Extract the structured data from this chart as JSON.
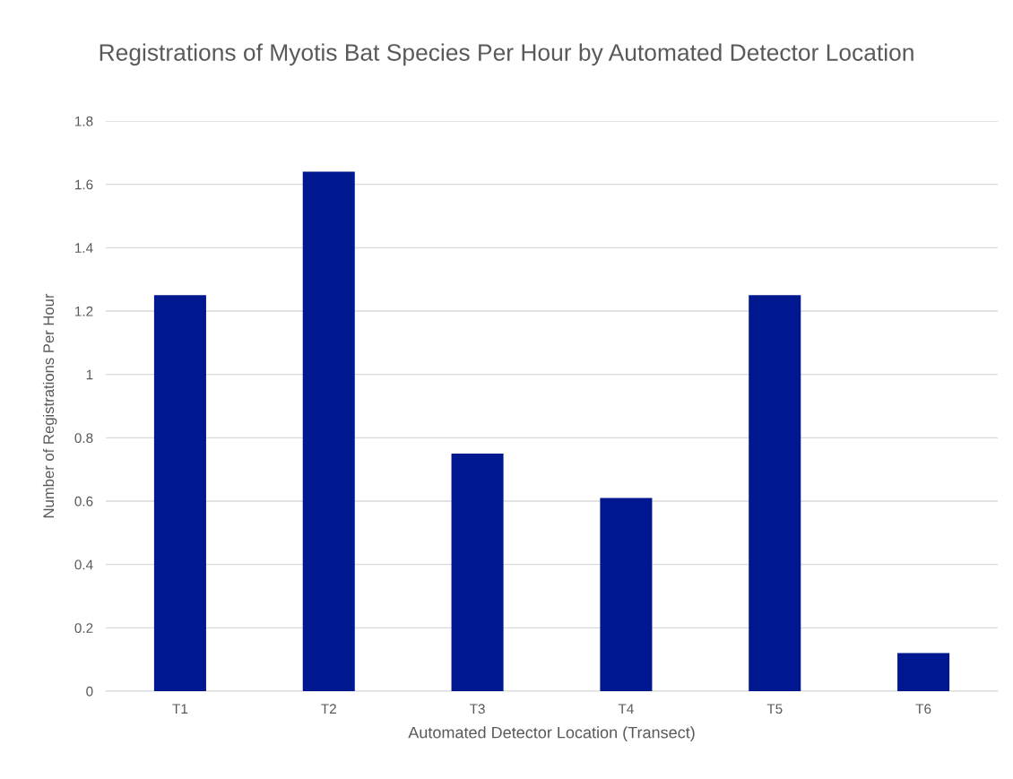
{
  "chart_data": {
    "type": "bar",
    "title": "Registrations of Myotis Bat Species Per Hour by Automated Detector Location",
    "xlabel": "Automated Detector Location (Transect)",
    "ylabel": "Number of Registrations Per Hour",
    "categories": [
      "T1",
      "T2",
      "T3",
      "T4",
      "T5",
      "T6"
    ],
    "values": [
      1.25,
      1.64,
      0.75,
      0.61,
      1.25,
      0.12
    ],
    "color": "#00188f",
    "ylim": [
      0,
      1.8
    ],
    "yticks": [
      {
        "value": 0,
        "label": "0"
      },
      {
        "value": 0.2,
        "label": "0.2"
      },
      {
        "value": 0.4,
        "label": "0.4"
      },
      {
        "value": 0.6,
        "label": "0.6"
      },
      {
        "value": 0.8,
        "label": "0.8"
      },
      {
        "value": 1,
        "label": "1"
      },
      {
        "value": 1.2,
        "label": "1.2"
      },
      {
        "value": 1.4,
        "label": "1.4"
      },
      {
        "value": 1.6,
        "label": "1.6"
      },
      {
        "value": 1.8,
        "label": "1.8"
      }
    ],
    "grid": "y"
  }
}
